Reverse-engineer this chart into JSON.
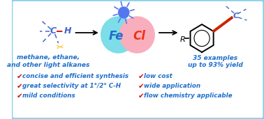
{
  "bg_color": "#ffffff",
  "border_color": "#87CEEB",
  "border_lw": 2.5,
  "fe_circle_color": "#7DDDE8",
  "cl_circle_color": "#F9AEBE",
  "fe_text": "Fe",
  "cl_text": "Cl",
  "fe_color": "#1E6FCC",
  "cl_color": "#EE3311",
  "sun_color": "#5577EE",
  "alkane_text1": "methane, ethane,",
  "alkane_text2": "and other light alkanes",
  "product_text1": "35 examples",
  "product_text2": "up to 93% yield",
  "bullets_left": [
    "concise and efficient synthesis",
    "great selectivity at 1°/2° C-H",
    "mild conditions"
  ],
  "bullets_right": [
    "low cost",
    "wide application",
    "flow chemistry applicable"
  ],
  "text_color_blue": "#1E6FCC",
  "text_color_red": "#CC1111",
  "bond_color": "#4466CC",
  "alkyne_color": "#CC2200",
  "scissors_color": "#FFB300"
}
